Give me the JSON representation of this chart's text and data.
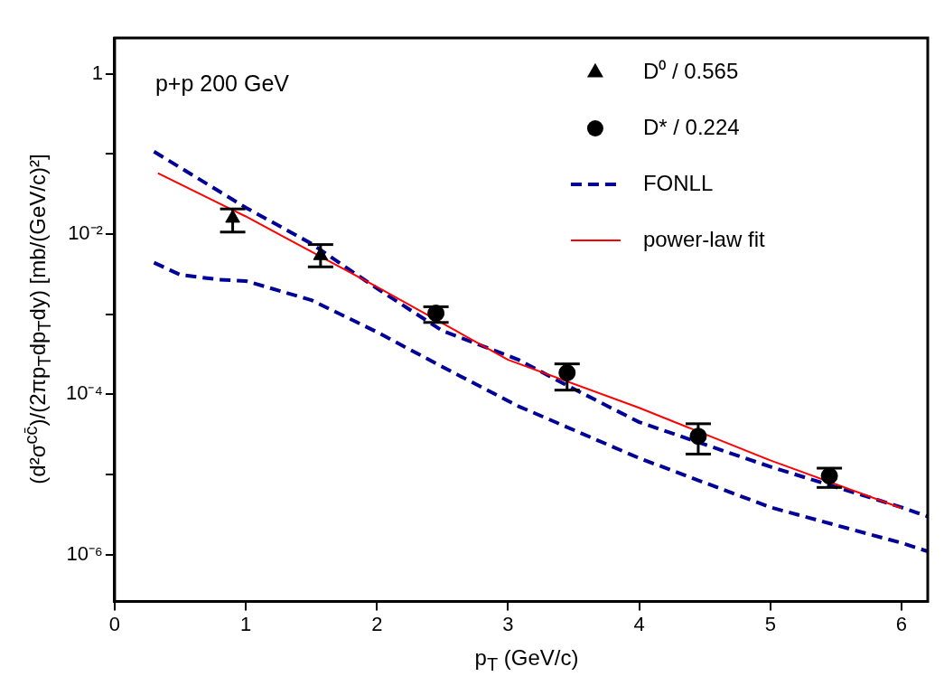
{
  "chart_data": {
    "type": "scatter",
    "xlabel": "p$_{T}$ (GeV/c)",
    "ylabel": "(d²σ$^{cc̄}$)/(2πp$_{T}$dp$_{T}$dy) [mb/(GeV/c)²]",
    "annotations": [
      "p+p 200 GeV"
    ],
    "log": "y",
    "grid": false,
    "legend": "top right",
    "xlim": [
      0,
      6.2
    ],
    "ylim": [
      2.6e-07,
      2.8
    ],
    "xticks": [
      0,
      1,
      2,
      3,
      4,
      5,
      6
    ],
    "yticks": [
      {
        "value": 1e-06,
        "label": "10⁻⁶"
      },
      {
        "value": 1e-05,
        "label": null
      },
      {
        "value": 0.0001,
        "label": "10⁻⁴"
      },
      {
        "value": 0.001,
        "label": null
      },
      {
        "value": 0.01,
        "label": "10⁻²"
      },
      {
        "value": 0.1,
        "label": null
      },
      1
    ],
    "series": [
      {
        "name": "D⁰ / 0.565",
        "type": "scatter",
        "marker": "triangle",
        "color": "#000000",
        "x": [
          0.9,
          1.57
        ],
        "values": [
          0.0158,
          0.0054
        ],
        "errors": [
          [
            0.0106,
            0.0206
          ],
          [
            0.0039,
            0.0074
          ]
        ]
      },
      {
        "name": "D* / 0.224",
        "type": "scatter",
        "marker": "circle",
        "color": "#000000",
        "x": [
          2.45,
          3.45,
          4.45,
          5.45
        ],
        "values": [
          0.00103,
          0.000186,
          3e-05,
          9.6e-06
        ],
        "errors": [
          [
            0.00079,
            0.00124
          ],
          [
            0.000113,
            0.00024
          ],
          [
            1.8e-05,
            4.3e-05
          ],
          [
            6.9e-06,
            1.2e-05
          ]
        ]
      },
      {
        "name": "FONLL",
        "type": "line",
        "line_style": "dashed",
        "marker": "none",
        "color": "#000099",
        "x": [
          0.3,
          1,
          1.5,
          2,
          2.5,
          3.08,
          3.45,
          4,
          5,
          6,
          6.2
        ],
        "values": [
          0.107,
          0.0214,
          0.0076,
          0.0021,
          0.00062,
          0.00027,
          0.000129,
          4.5e-05,
          1.25e-05,
          3.9e-06,
          3e-06
        ]
      },
      {
        "type": "line",
        "line_style": "dashed",
        "marker": "none",
        "color": "#000099",
        "x": [
          0.3,
          0.5,
          0.8,
          1,
          1.5,
          2,
          2.5,
          3.08,
          4,
          5,
          6,
          6.2
        ],
        "values": [
          0.0044,
          0.0031,
          0.0027,
          0.0026,
          0.0015,
          0.0006,
          0.00022,
          7.1e-05,
          1.6e-05,
          3.9e-06,
          1.4e-06,
          1.1e-06
        ]
      },
      {
        "name": "power-law fit",
        "type": "line",
        "line_style": "solid",
        "marker": "none",
        "color": "#ff0000",
        "x": [
          0.33,
          1,
          2,
          3,
          4,
          5,
          6
        ],
        "values": [
          0.0575,
          0.0166,
          0.0022,
          0.00027,
          6.8e-05,
          1.5e-05,
          3.8e-06
        ]
      }
    ]
  }
}
